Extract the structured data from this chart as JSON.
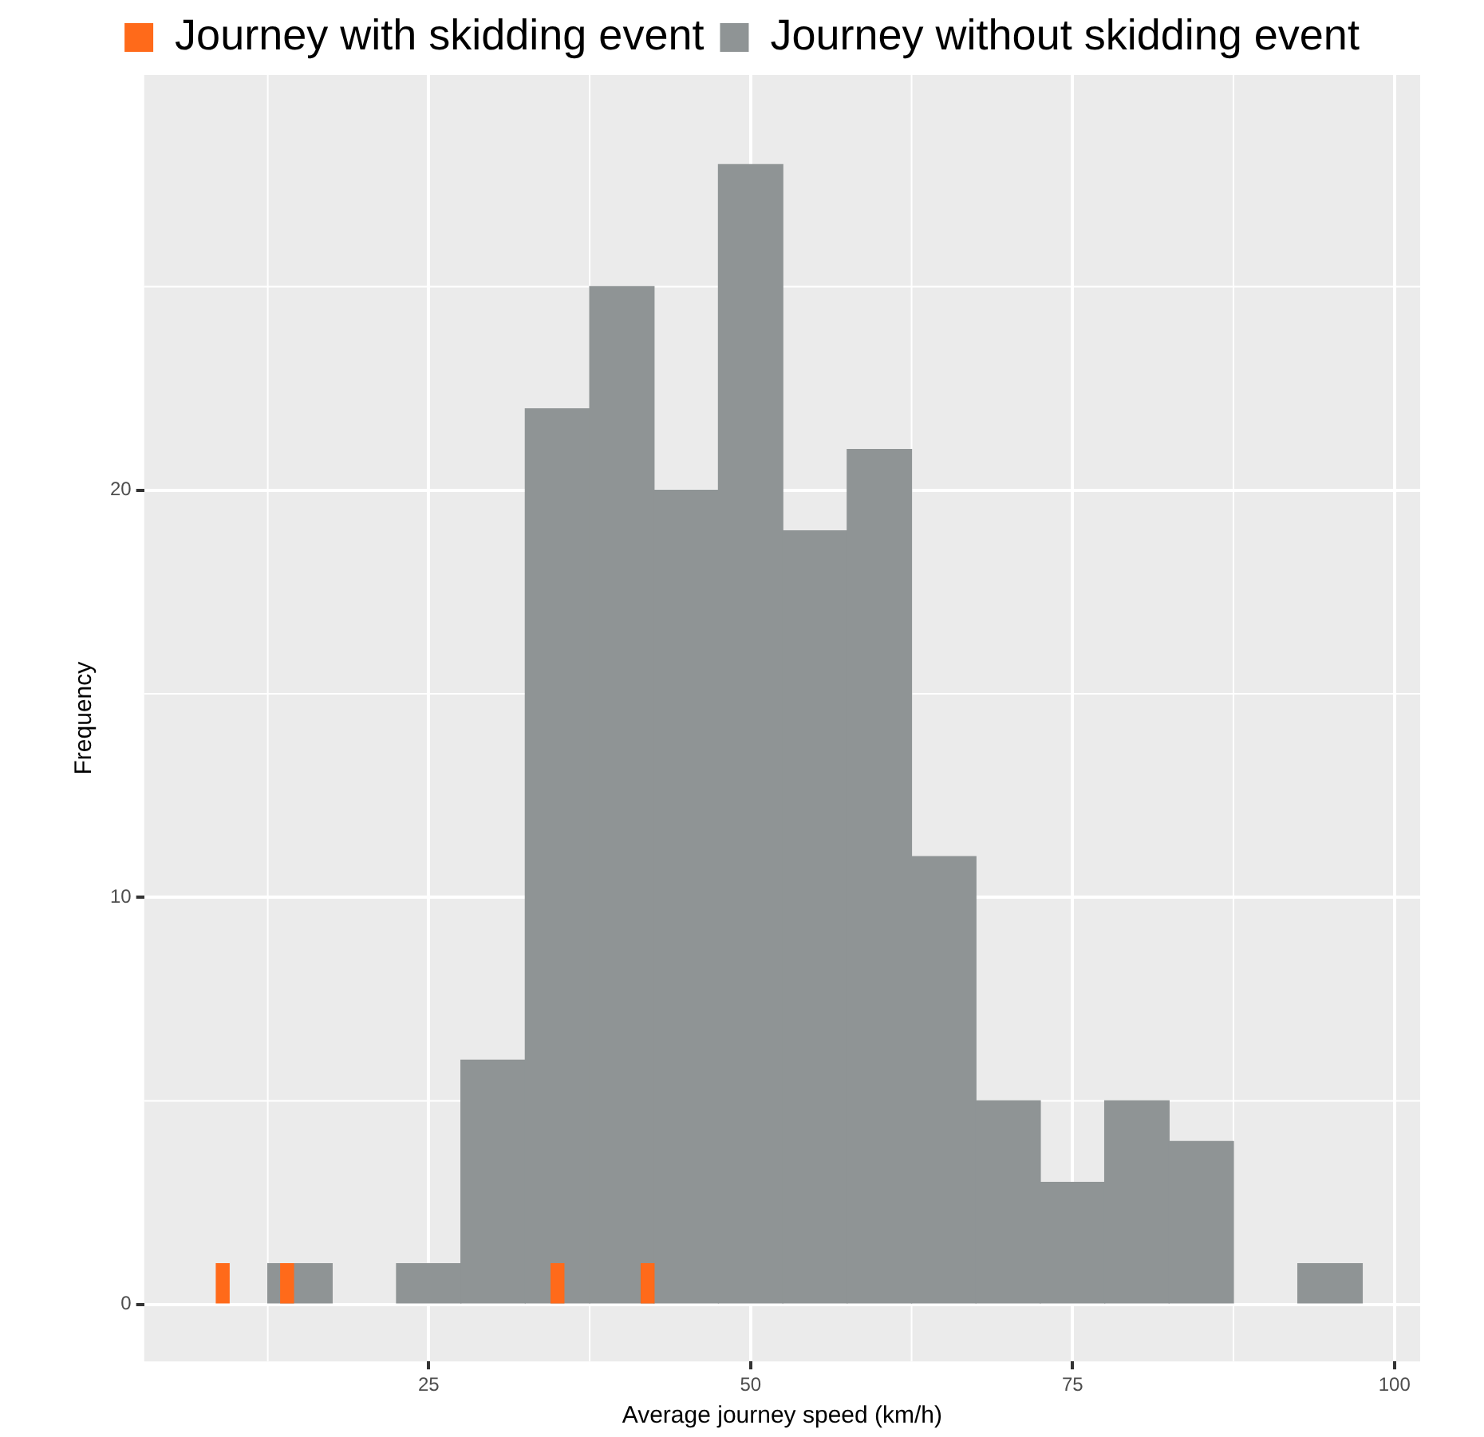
{
  "chart_data": {
    "type": "histogram",
    "xlabel": "Average journey speed (km/h)",
    "ylabel": "Frequency",
    "xlim": [
      2.9,
      102
    ],
    "xticks": [
      25,
      50,
      75,
      100
    ],
    "ylim": [
      -1.4,
      30.2
    ],
    "yticks": [
      0,
      10,
      20
    ],
    "grid": true,
    "legend": "top",
    "bins": [
      12.5,
      17.5,
      22.5,
      27.5,
      32.5,
      37.5,
      42.5,
      47.5,
      52.5,
      57.5,
      62.5,
      67.5,
      72.5,
      77.5,
      82.5,
      87.5,
      92.5,
      97.5
    ],
    "series": [
      {
        "name": "Journey with skidding event",
        "color": "#ff6a1a",
        "bins": [
          8.5,
          9.5,
          10.5,
          11.5,
          12.5,
          13.5,
          14.5,
          15.5,
          16.5,
          17.5,
          18.5,
          19.5,
          20.5,
          21.5,
          22.5,
          23.5,
          24.5,
          25.5,
          26.5,
          27.5,
          28.5,
          29.5,
          30.5,
          31.5,
          32.5,
          33.5,
          34.5,
          35.5,
          36.5,
          37.5,
          38.5,
          39.5,
          40.5,
          41.5,
          42.5
        ],
        "values": [
          1,
          0,
          0,
          0,
          0,
          1,
          0,
          0,
          0,
          0,
          0,
          0,
          0,
          0,
          0,
          0,
          0,
          0,
          0,
          0,
          0,
          0,
          0,
          0,
          0,
          0,
          1,
          0,
          0,
          0,
          0,
          0,
          0,
          1
        ]
      },
      {
        "name": "Journey without skidding event",
        "color": "#8f9495",
        "values": [
          1,
          0,
          1,
          6,
          22,
          25,
          20,
          28,
          19,
          21,
          11,
          5,
          3,
          5,
          4,
          0,
          1
        ]
      }
    ]
  }
}
